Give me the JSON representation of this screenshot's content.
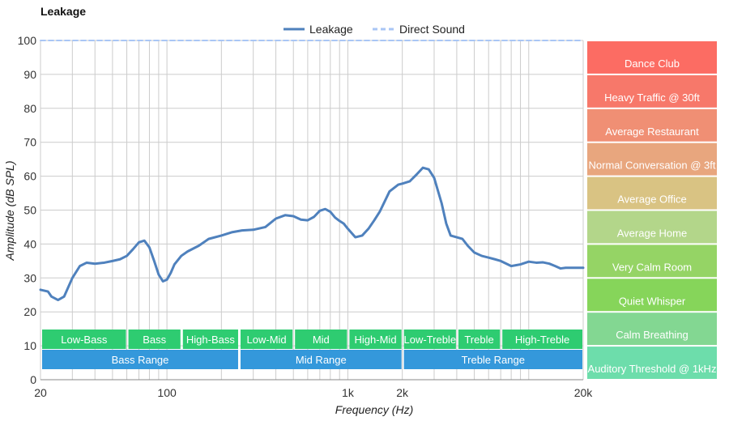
{
  "chart_data": {
    "type": "line",
    "title": "Leakage",
    "xlabel": "Frequency (Hz)",
    "ylabel": "Amplitude (dB SPL)",
    "xscale": "log",
    "xlim": [
      20,
      20000
    ],
    "ylim": [
      0,
      100
    ],
    "x_tick_labels": [
      {
        "value": 20,
        "label": "20"
      },
      {
        "value": 100,
        "label": "100"
      },
      {
        "value": 1000,
        "label": "1k"
      },
      {
        "value": 2000,
        "label": "2k"
      },
      {
        "value": 20000,
        "label": "20k"
      }
    ],
    "y_ticks": [
      0,
      10,
      20,
      30,
      40,
      50,
      60,
      70,
      80,
      90,
      100
    ],
    "grid": true,
    "legend_position": "top-center",
    "series": [
      {
        "name": "Leakage",
        "color": "#4f81bd",
        "x": [
          20,
          22,
          23,
          25,
          27,
          30,
          33,
          36,
          40,
          45,
          50,
          55,
          60,
          65,
          70,
          75,
          80,
          85,
          90,
          95,
          100,
          105,
          110,
          120,
          130,
          150,
          170,
          200,
          230,
          260,
          300,
          350,
          400,
          450,
          500,
          550,
          600,
          650,
          700,
          750,
          800,
          850,
          900,
          950,
          1000,
          1100,
          1200,
          1300,
          1400,
          1500,
          1700,
          1900,
          2000,
          2200,
          2400,
          2600,
          2800,
          3000,
          3300,
          3500,
          3700,
          4000,
          4300,
          4600,
          5000,
          5500,
          6000,
          6500,
          7000,
          8000,
          9000,
          10000,
          11000,
          12000,
          13000,
          14000,
          15000,
          16000,
          17000,
          18000,
          19000,
          20000
        ],
        "y": [
          26.5,
          26.0,
          24.5,
          23.5,
          24.5,
          30.0,
          33.5,
          34.5,
          34.2,
          34.5,
          35.0,
          35.5,
          36.5,
          38.5,
          40.5,
          41.0,
          39.0,
          35.0,
          31.0,
          29.0,
          29.5,
          31.5,
          34.0,
          36.5,
          37.8,
          39.5,
          41.5,
          42.5,
          43.5,
          44.0,
          44.2,
          45.0,
          47.5,
          48.5,
          48.2,
          47.2,
          47.0,
          48.0,
          49.8,
          50.3,
          49.5,
          47.8,
          46.8,
          46.0,
          44.5,
          42.0,
          42.5,
          44.5,
          47.0,
          49.5,
          55.5,
          57.5,
          57.8,
          58.5,
          60.5,
          62.5,
          62.0,
          59.5,
          52.0,
          46.0,
          42.5,
          42.0,
          41.5,
          39.5,
          37.5,
          36.5,
          36.0,
          35.5,
          35.0,
          33.5,
          34.0,
          34.8,
          34.5,
          34.6,
          34.2,
          33.5,
          32.8,
          33.0,
          33.0,
          33.0,
          33.0,
          33.0
        ]
      },
      {
        "name": "Direct Sound",
        "color": "#a9c6f5",
        "dashed": true,
        "x": [
          20,
          20000
        ],
        "y": [
          100,
          100
        ]
      }
    ],
    "frequency_bands": [
      {
        "label": "Low-Bass",
        "from": 20,
        "to": 60,
        "row": 1,
        "color": "#2ecc71"
      },
      {
        "label": "Bass",
        "from": 60,
        "to": 120,
        "row": 1,
        "color": "#2ecc71"
      },
      {
        "label": "High-Bass",
        "from": 120,
        "to": 250,
        "row": 1,
        "color": "#2ecc71"
      },
      {
        "label": "Low-Mid",
        "from": 250,
        "to": 500,
        "row": 1,
        "color": "#2ecc71"
      },
      {
        "label": "Mid",
        "from": 500,
        "to": 1000,
        "row": 1,
        "color": "#2ecc71"
      },
      {
        "label": "High-Mid",
        "from": 1000,
        "to": 2000,
        "row": 1,
        "color": "#2ecc71"
      },
      {
        "label": "Low-Treble",
        "from": 2000,
        "to": 4000,
        "row": 1,
        "color": "#2ecc71"
      },
      {
        "label": "Treble",
        "from": 4000,
        "to": 7000,
        "row": 1,
        "color": "#2ecc71"
      },
      {
        "label": "High-Treble",
        "from": 7000,
        "to": 20000,
        "row": 1,
        "color": "#2ecc71"
      },
      {
        "label": "Bass Range",
        "from": 20,
        "to": 250,
        "row": 2,
        "color": "#3498db"
      },
      {
        "label": "Mid Range",
        "from": 250,
        "to": 2000,
        "row": 2,
        "color": "#3498db"
      },
      {
        "label": "Treble Range",
        "from": 2000,
        "to": 20000,
        "row": 2,
        "color": "#3498db"
      }
    ],
    "reference_levels": [
      {
        "label": "Dance Club",
        "from": 100,
        "to": 90,
        "color": "#fc6c63"
      },
      {
        "label": "Heavy Traffic @ 30ft",
        "from": 90,
        "to": 80,
        "color": "#f7786a"
      },
      {
        "label": "Average Restaurant",
        "from": 80,
        "to": 70,
        "color": "#f08f74"
      },
      {
        "label": "Normal Conversation @ 3ft",
        "from": 70,
        "to": 60,
        "color": "#e8a67e"
      },
      {
        "label": "Average Office",
        "from": 60,
        "to": 50,
        "color": "#d9c383"
      },
      {
        "label": "Average Home",
        "from": 50,
        "to": 40,
        "color": "#b3d68a"
      },
      {
        "label": "Very Calm Room",
        "from": 40,
        "to": 30,
        "color": "#95d465"
      },
      {
        "label": "Quiet Whisper",
        "from": 30,
        "to": 20,
        "color": "#86d55a"
      },
      {
        "label": "Calm Breathing",
        "from": 20,
        "to": 10,
        "color": "#83d792"
      },
      {
        "label": "Auditory Threshold @ 1kHz",
        "from": 10,
        "to": 0,
        "color": "#6dddab"
      }
    ]
  }
}
